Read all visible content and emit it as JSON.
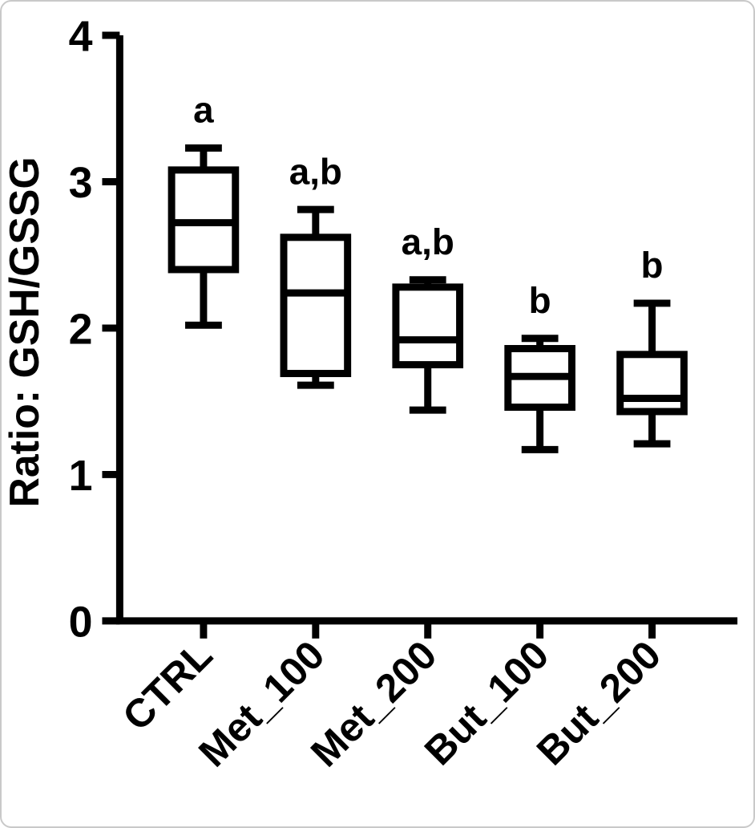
{
  "figure": {
    "colors": {
      "stroke": "#000000",
      "background": "#ffffff"
    }
  },
  "chart_data": {
    "type": "boxplot",
    "title": "",
    "xlabel": "",
    "ylabel": "Ratio: GSH/GSSG",
    "ylim": [
      0,
      4
    ],
    "yticks": [
      0,
      1,
      2,
      3,
      4
    ],
    "grid": false,
    "legend": false,
    "categories": [
      "CTRL",
      "Met_100",
      "Met_200",
      "But_100",
      "But_200"
    ],
    "series": [
      {
        "name": "CTRL",
        "whisker_low": 2.02,
        "q1": 2.4,
        "median": 2.72,
        "q3": 3.08,
        "whisker_high": 3.23,
        "annotation": "a"
      },
      {
        "name": "Met_100",
        "whisker_low": 1.61,
        "q1": 1.69,
        "median": 2.24,
        "q3": 2.62,
        "whisker_high": 2.81,
        "annotation": "a,b"
      },
      {
        "name": "Met_200",
        "whisker_low": 1.44,
        "q1": 1.75,
        "median": 1.92,
        "q3": 2.28,
        "whisker_high": 2.33,
        "annotation": "a,b"
      },
      {
        "name": "But_100",
        "whisker_low": 1.17,
        "q1": 1.46,
        "median": 1.67,
        "q3": 1.86,
        "whisker_high": 1.93,
        "annotation": "b"
      },
      {
        "name": "But_200",
        "whisker_low": 1.21,
        "q1": 1.43,
        "median": 1.52,
        "q3": 1.82,
        "whisker_high": 2.17,
        "annotation": "b"
      }
    ]
  }
}
